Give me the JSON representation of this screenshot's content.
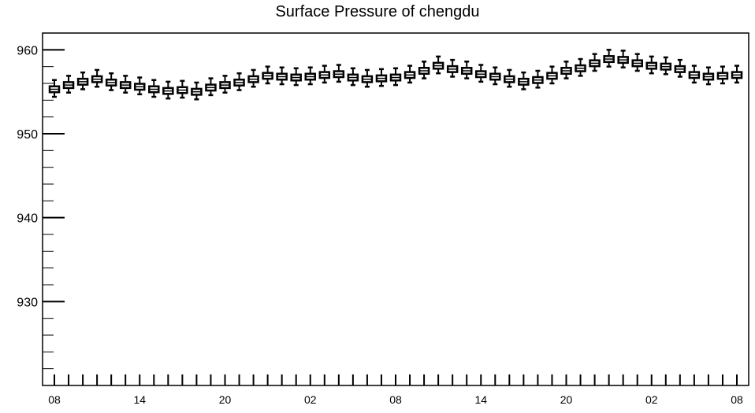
{
  "chart_data": {
    "type": "boxplot",
    "title": "Surface Pressure of chengdu",
    "xlabel": "",
    "ylabel": "",
    "ylim": [
      920,
      962
    ],
    "y_ticks": [
      930,
      940,
      950,
      960
    ],
    "y_tick_labels": [
      "930",
      "940",
      "950",
      "960"
    ],
    "x_tick_labels": [
      "08",
      "14",
      "20",
      "02",
      "08",
      "14",
      "20",
      "02",
      "08"
    ],
    "x_tick_every": 6,
    "grid": false,
    "legend": "none",
    "hours": 49,
    "medians": [
      955.3,
      955.8,
      956.2,
      956.5,
      956.1,
      955.8,
      955.6,
      955.3,
      955.1,
      955.2,
      955.0,
      955.5,
      955.8,
      956.1,
      956.5,
      956.9,
      956.8,
      956.7,
      956.8,
      957.0,
      957.1,
      956.7,
      956.5,
      956.6,
      956.7,
      957.0,
      957.5,
      958.1,
      957.7,
      957.5,
      957.1,
      956.8,
      956.5,
      956.2,
      956.4,
      956.9,
      957.5,
      957.8,
      958.4,
      958.9,
      958.8,
      958.4,
      958.1,
      958.0,
      957.7,
      957.0,
      956.8,
      956.9,
      957.0
    ],
    "colors": {
      "box_stroke": "#000000",
      "box_fill": "#ffffff",
      "axis": "#000000"
    }
  }
}
